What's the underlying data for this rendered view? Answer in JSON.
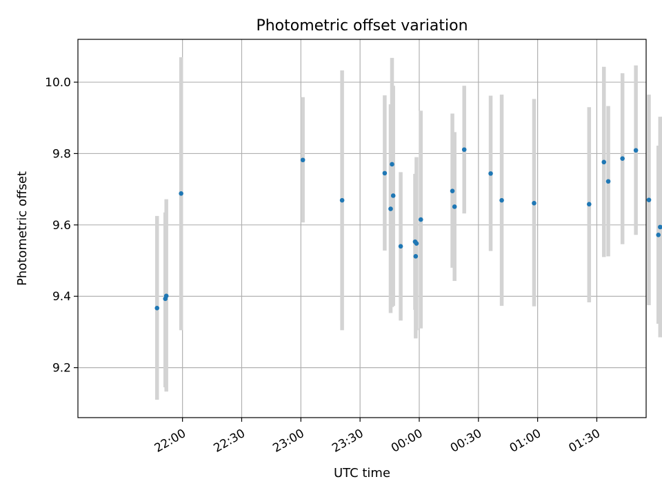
{
  "chart_data": {
    "type": "scatter",
    "title": "Photometric offset variation",
    "xlabel": "UTC time",
    "ylabel": "Photometric offset",
    "xlim_minutes": [
      1267,
      1555
    ],
    "ylim": [
      9.06,
      10.12
    ],
    "x_ticks": [
      {
        "minute": 1320,
        "label": "22:00"
      },
      {
        "minute": 1350,
        "label": "22:30"
      },
      {
        "minute": 1380,
        "label": "23:00"
      },
      {
        "minute": 1410,
        "label": "23:30"
      },
      {
        "minute": 1440,
        "label": "00:00"
      },
      {
        "minute": 1470,
        "label": "00:30"
      },
      {
        "minute": 1500,
        "label": "01:00"
      },
      {
        "minute": 1530,
        "label": "01:30"
      },
      {
        "minute": 1560,
        "label": "02:00"
      }
    ],
    "y_ticks": [
      9.2,
      9.4,
      9.6,
      9.8,
      10.0
    ],
    "y_tick_labels": [
      "9.2",
      "9.4",
      "9.6",
      "9.8",
      "10.0"
    ],
    "grid": true,
    "point_color": "#1f77b4",
    "errorbar_color": "#d3d3d3",
    "points": [
      {
        "minute": 1307.1,
        "y": 9.367,
        "low": 9.11,
        "high": 9.625
      },
      {
        "minute": 1311.3,
        "y": 9.393,
        "low": 9.145,
        "high": 9.635
      },
      {
        "minute": 1311.8,
        "y": 9.401,
        "low": 9.133,
        "high": 9.672
      },
      {
        "minute": 1319.3,
        "y": 9.688,
        "low": 9.305,
        "high": 10.07
      },
      {
        "minute": 1381.0,
        "y": 9.782,
        "low": 9.607,
        "high": 9.958
      },
      {
        "minute": 1400.9,
        "y": 9.669,
        "low": 9.305,
        "high": 10.033
      },
      {
        "minute": 1422.5,
        "y": 9.745,
        "low": 9.528,
        "high": 9.963
      },
      {
        "minute": 1425.5,
        "y": 9.645,
        "low": 9.353,
        "high": 9.938
      },
      {
        "minute": 1426.2,
        "y": 9.77,
        "low": 9.37,
        "high": 10.068
      },
      {
        "minute": 1426.8,
        "y": 9.682,
        "low": 9.373,
        "high": 9.99
      },
      {
        "minute": 1430.6,
        "y": 9.54,
        "low": 9.332,
        "high": 9.748
      },
      {
        "minute": 1437.9,
        "y": 9.553,
        "low": 9.362,
        "high": 9.743
      },
      {
        "minute": 1438.2,
        "y": 9.512,
        "low": 9.282,
        "high": 9.743
      },
      {
        "minute": 1438.6,
        "y": 9.548,
        "low": 9.305,
        "high": 9.79
      },
      {
        "minute": 1440.8,
        "y": 9.615,
        "low": 9.31,
        "high": 9.92
      },
      {
        "minute": 1456.8,
        "y": 9.695,
        "low": 9.48,
        "high": 9.912
      },
      {
        "minute": 1457.9,
        "y": 9.651,
        "low": 9.443,
        "high": 9.86
      },
      {
        "minute": 1462.8,
        "y": 9.811,
        "low": 9.632,
        "high": 9.99
      },
      {
        "minute": 1476.2,
        "y": 9.744,
        "low": 9.527,
        "high": 9.962
      },
      {
        "minute": 1481.8,
        "y": 9.669,
        "low": 9.373,
        "high": 9.965
      },
      {
        "minute": 1498.2,
        "y": 9.661,
        "low": 9.372,
        "high": 9.953
      },
      {
        "minute": 1526.1,
        "y": 9.658,
        "low": 9.383,
        "high": 9.93
      },
      {
        "minute": 1533.6,
        "y": 9.776,
        "low": 9.51,
        "high": 10.043
      },
      {
        "minute": 1535.8,
        "y": 9.722,
        "low": 9.512,
        "high": 9.933
      },
      {
        "minute": 1543.0,
        "y": 9.786,
        "low": 9.546,
        "high": 10.025
      },
      {
        "minute": 1549.8,
        "y": 9.809,
        "low": 9.572,
        "high": 10.047
      },
      {
        "minute": 1556.4,
        "y": 9.67,
        "low": 9.375,
        "high": 9.965
      },
      {
        "minute": 1561.2,
        "y": 9.572,
        "low": 9.323,
        "high": 9.822
      },
      {
        "minute": 1562.1,
        "y": 9.594,
        "low": 9.285,
        "high": 9.903
      },
      {
        "minute": 1563.7,
        "y": 9.594,
        "low": 9.285,
        "high": 9.903
      }
    ]
  }
}
